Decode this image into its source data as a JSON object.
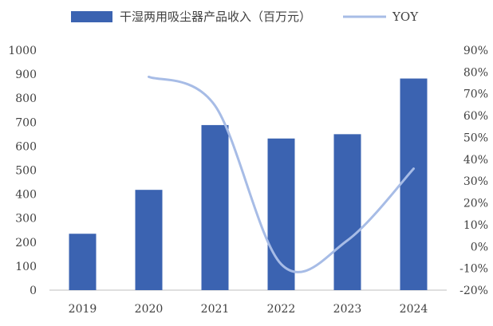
{
  "chart_data": {
    "type": "bar",
    "categories": [
      "2019",
      "2020",
      "2021",
      "2022",
      "2023",
      "2024"
    ],
    "series": [
      {
        "name": "干湿两用吸尘器产品收入（百万元）",
        "type": "bar",
        "axis": "left",
        "color": "#3b63b1",
        "values": [
          235,
          418,
          688,
          632,
          650,
          882
        ]
      },
      {
        "name": "YOY",
        "type": "line",
        "axis": "right",
        "color": "#a7bce6",
        "values": [
          null,
          77.8,
          64.6,
          -8.1,
          2.8,
          35.7
        ]
      }
    ],
    "y_left": {
      "min": 0,
      "max": 1000,
      "step": 100,
      "tick_labels": [
        "0",
        "100",
        "200",
        "300",
        "400",
        "500",
        "600",
        "700",
        "800",
        "900",
        "1000"
      ]
    },
    "y_right": {
      "min": -20,
      "max": 90,
      "step": 10,
      "tick_labels": [
        "-20%",
        "-10%",
        "0%",
        "10%",
        "20%",
        "30%",
        "40%",
        "50%",
        "60%",
        "70%",
        "80%",
        "90%"
      ]
    },
    "legend_position": "top",
    "grid": false
  }
}
